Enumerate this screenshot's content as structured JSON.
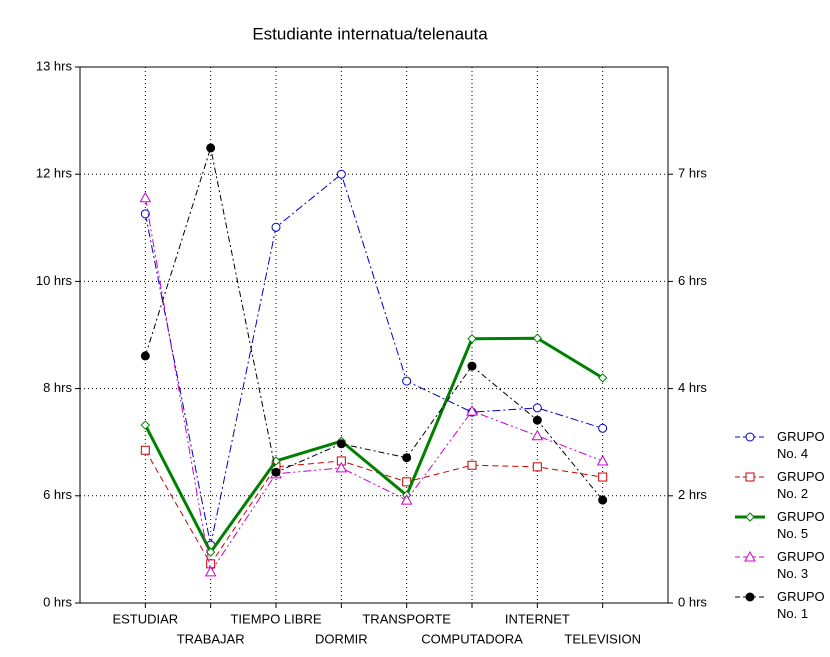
{
  "chart_data": {
    "type": "line",
    "title": "Estudiante internatua/telenauta",
    "categories": [
      "ESTUDIAR",
      "TRABAJAR",
      "TIEMPO LIBRE",
      "DORMIR",
      "TRANSPORTE",
      "COMPUTADORA",
      "INTERNET",
      "TELEVISION"
    ],
    "ylim": [
      0,
      10
    ],
    "yticks": [
      {
        "value": 0,
        "label": "0 hrs"
      },
      {
        "value": 2,
        "label": "6 hrs"
      },
      {
        "value": 4,
        "label": "8 hrs"
      },
      {
        "value": 6,
        "label": "10 hrs"
      },
      {
        "value": 8,
        "label": "12 hrs"
      },
      {
        "value": 10,
        "label": "13 hrs"
      }
    ],
    "y2lim": [
      0,
      10
    ],
    "y2ticks": [
      {
        "value": 0,
        "label": "0 hrs"
      },
      {
        "value": 2,
        "label": "2 hrs"
      },
      {
        "value": 4,
        "label": "4 hrs"
      },
      {
        "value": 6,
        "label": "6 hrs"
      },
      {
        "value": 8,
        "label": "7 hrs"
      }
    ],
    "grid": true,
    "legend": "right",
    "series": [
      {
        "name": "GRUPO No. 4",
        "color": "#0000cc",
        "marker": "circle",
        "dash": "8 3 2 3",
        "values": [
          7.26,
          1.08,
          7.01,
          8.0,
          4.14,
          3.56,
          3.64,
          3.26
        ]
      },
      {
        "name": "GRUPO No. 2",
        "color": "#cc0000",
        "marker": "square",
        "dash": "6 4",
        "values": [
          2.85,
          0.73,
          2.54,
          2.65,
          2.26,
          2.57,
          2.54,
          2.35
        ]
      },
      {
        "name": "GRUPO No. 5",
        "color": "#008000",
        "marker": "diamond",
        "dash": "none",
        "values": [
          3.32,
          0.95,
          2.65,
          3.02,
          2.01,
          4.93,
          4.94,
          4.2
        ]
      },
      {
        "name": "GRUPO No. 3",
        "color": "#cc00cc",
        "marker": "triangle",
        "dash": "8 3 2 3 2 3",
        "values": [
          7.56,
          0.58,
          2.41,
          2.52,
          1.92,
          3.58,
          3.12,
          2.65
        ]
      },
      {
        "name": "GRUPO No. 1",
        "color": "#000000",
        "marker": "dot",
        "dash": "6 3 2 3",
        "values": [
          4.61,
          8.49,
          2.44,
          2.97,
          2.71,
          4.42,
          3.41,
          1.92
        ]
      }
    ]
  }
}
